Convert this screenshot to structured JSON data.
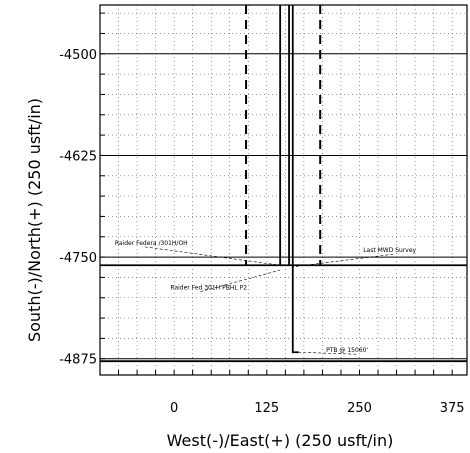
{
  "chart_data": {
    "type": "line",
    "xlabel": "West(-)/East(+) (250 usft/in)",
    "ylabel": "South(-)/North(+) (250 usft/in)",
    "xlim": [
      -100,
      395
    ],
    "ylim": [
      -4895,
      -4440
    ],
    "x_ticks": [
      0,
      125,
      250,
      375
    ],
    "x_tick_labels": [
      "0",
      "125",
      "250",
      "375"
    ],
    "y_ticks": [
      -4500,
      -4625,
      -4750,
      -4875
    ],
    "y_tick_labels": [
      "-4500",
      "-4625",
      "-4750",
      "-4875"
    ],
    "grid": true,
    "series": [
      {
        "style": "solid",
        "points": [
          {
            "x": 143,
            "y": -4440
          },
          {
            "x": 143,
            "y": -4760
          }
        ]
      },
      {
        "style": "solid",
        "points": [
          {
            "x": 155,
            "y": -4440
          },
          {
            "x": 155,
            "y": -4760
          }
        ]
      },
      {
        "style": "solid",
        "points": [
          {
            "x": 160,
            "y": -4440
          },
          {
            "x": 160,
            "y": -4867
          },
          {
            "x": 168,
            "y": -4867
          }
        ]
      },
      {
        "style": "dashed",
        "points": [
          {
            "x": 97,
            "y": -4440
          },
          {
            "x": 97,
            "y": -4760
          }
        ]
      },
      {
        "style": "dashed",
        "points": [
          {
            "x": 197,
            "y": -4440
          },
          {
            "x": 197,
            "y": -4760
          }
        ]
      },
      {
        "style": "solid",
        "points": [
          {
            "x": -100,
            "y": -4760
          },
          {
            "x": 395,
            "y": -4760
          }
        ]
      },
      {
        "style": "solid",
        "points": [
          {
            "x": -100,
            "y": -4878
          },
          {
            "x": 395,
            "y": -4878
          }
        ]
      }
    ],
    "annotations": [
      {
        "text": "Raider Federa /301H/OH",
        "x": -80,
        "y": -4735,
        "target_x": 143,
        "target_y": -4760
      },
      {
        "text": "Last MWD Survey",
        "x": 255,
        "y": -4744,
        "target_x": 160,
        "target_y": -4762
      },
      {
        "text": "Raider Fed 301H PBHL P2",
        "x": -5,
        "y": -4790,
        "target_x": 143,
        "target_y": -4766
      },
      {
        "text": "PTB @ 15060'",
        "x": 205,
        "y": -4867,
        "target_x": 168,
        "target_y": -4867
      }
    ]
  }
}
